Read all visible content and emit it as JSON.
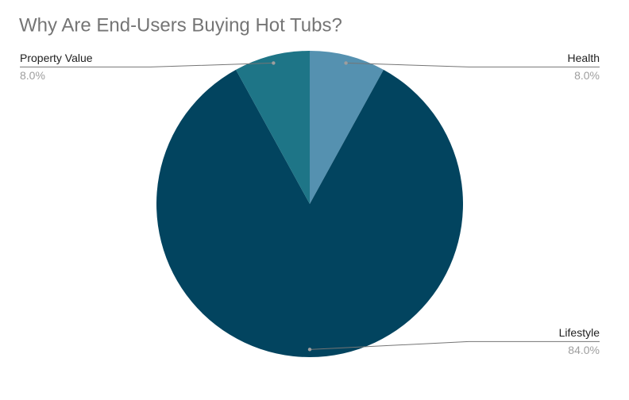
{
  "chart_data": {
    "type": "pie",
    "title": "Why Are End-Users Buying Hot Tubs?",
    "categories": [
      "Health",
      "Lifestyle",
      "Property Value"
    ],
    "values": [
      8,
      84,
      8
    ],
    "value_labels": [
      "8.0%",
      "84.0%",
      "8.0%"
    ],
    "colors": [
      "#5591b0",
      "#02445f",
      "#1e7587"
    ]
  }
}
